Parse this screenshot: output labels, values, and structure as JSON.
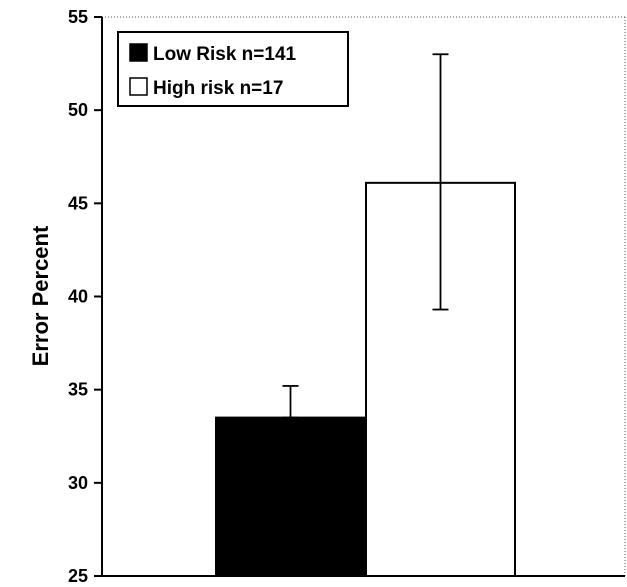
{
  "chart_data": {
    "type": "bar",
    "title": "",
    "xlabel": "",
    "ylabel": "Error Percent",
    "ylim": [
      25,
      55
    ],
    "yticks": [
      "25",
      "30",
      "35",
      "40",
      "45",
      "50",
      "55"
    ],
    "yticks_values": [
      25,
      30,
      35,
      40,
      45,
      50,
      55
    ],
    "grid": false,
    "legend_position": "top-left",
    "series": [
      {
        "name": "Low Risk n=141",
        "value": 33.5,
        "error_upper": 35.2,
        "error_lower": 33.5,
        "color": "#000000"
      },
      {
        "name": "High risk n=17",
        "value": 46.1,
        "error_upper": 53.0,
        "error_lower": 39.3,
        "color": "#ffffff"
      }
    ]
  }
}
